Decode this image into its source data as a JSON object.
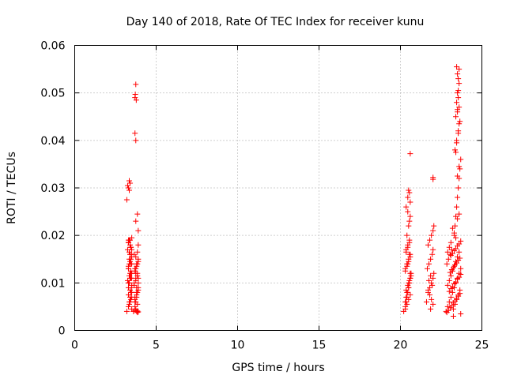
{
  "chart_data": {
    "type": "scatter",
    "title": "Day 140 of 2018, Rate Of TEC Index for receiver kunu",
    "xlabel": "GPS time / hours",
    "ylabel": "ROTI / TECUs",
    "xlim": [
      0,
      25
    ],
    "ylim": [
      0,
      0.06
    ],
    "xticks": [
      0,
      5,
      10,
      15,
      20,
      25
    ],
    "xtick_labels": [
      "0",
      "5",
      "10",
      "15",
      "20",
      "25"
    ],
    "yticks": [
      0,
      0.01,
      0.02,
      0.03,
      0.04,
      0.05,
      0.06
    ],
    "ytick_labels": [
      "0",
      "0.01",
      "0.02",
      "0.03",
      "0.04",
      "0.05",
      "0.06"
    ],
    "grid": true,
    "legend": "none",
    "marker": "plus",
    "color": "#ff0000",
    "series": [
      {
        "x": [
          3.2,
          3.3,
          3.35,
          3.4,
          3.45,
          3.5,
          3.3,
          3.4,
          3.5,
          3.3,
          3.45,
          3.35,
          3.5,
          3.25,
          3.4,
          3.3,
          3.5,
          3.35,
          3.45,
          3.3,
          3.4,
          3.5,
          3.25,
          3.35,
          3.45,
          3.3,
          3.4,
          3.5,
          3.35,
          3.45,
          3.3,
          3.4,
          3.5,
          3.3,
          3.45,
          3.35,
          3.4,
          3.5,
          3.3,
          3.45,
          3.2,
          3.35,
          3.3,
          3.4,
          3.25,
          3.35,
          3.5,
          3.3,
          3.4,
          3.45,
          3.5,
          3.3,
          3.35,
          3.4,
          3.45,
          3.5,
          3.3,
          3.4,
          3.5,
          3.35,
          3.6,
          3.7,
          3.75,
          3.8,
          3.85,
          3.9,
          3.65,
          3.75,
          3.85,
          3.7,
          3.8,
          3.9,
          3.65,
          3.75,
          3.85,
          3.7,
          3.8,
          3.9,
          3.65,
          3.75,
          3.85,
          3.7,
          3.8,
          3.9,
          3.75,
          3.85,
          3.7,
          3.8,
          3.9,
          3.75,
          3.85,
          3.7,
          3.8,
          3.9,
          3.75,
          3.85,
          3.7,
          3.8,
          3.9,
          3.85,
          3.7,
          3.72,
          3.75,
          3.78,
          3.7,
          3.75,
          3.75,
          3.85,
          3.9,
          3.9
        ],
        "y": [
          0.004,
          0.005,
          0.006,
          0.007,
          0.008,
          0.009,
          0.01,
          0.011,
          0.012,
          0.013,
          0.014,
          0.015,
          0.016,
          0.017,
          0.018,
          0.019,
          0.0045,
          0.0055,
          0.0065,
          0.0075,
          0.0085,
          0.0095,
          0.0105,
          0.0115,
          0.0125,
          0.0135,
          0.0145,
          0.0155,
          0.0165,
          0.0175,
          0.0185,
          0.006,
          0.008,
          0.01,
          0.012,
          0.014,
          0.016,
          0.007,
          0.009,
          0.011,
          0.0275,
          0.0295,
          0.03,
          0.031,
          0.0305,
          0.0315,
          0.0195,
          0.0185,
          0.019,
          0.0175,
          0.017,
          0.0185,
          0.019,
          0.016,
          0.015,
          0.014,
          0.013,
          0.012,
          0.011,
          0.01,
          0.004,
          0.005,
          0.006,
          0.007,
          0.008,
          0.009,
          0.01,
          0.011,
          0.012,
          0.013,
          0.014,
          0.015,
          0.016,
          0.0045,
          0.0055,
          0.0065,
          0.0075,
          0.0085,
          0.0095,
          0.0105,
          0.0115,
          0.0125,
          0.0135,
          0.0145,
          0.0155,
          0.0165,
          0.006,
          0.008,
          0.01,
          0.012,
          0.014,
          0.007,
          0.009,
          0.011,
          0.013,
          0.0038,
          0.0042,
          0.004,
          0.0039,
          0.0041,
          0.049,
          0.0497,
          0.0518,
          0.0485,
          0.0415,
          0.04,
          0.023,
          0.0245,
          0.021,
          0.018
        ]
      },
      {
        "x": [
          20.2,
          20.3,
          20.35,
          20.4,
          20.45,
          20.5,
          20.55,
          20.6,
          20.65,
          20.3,
          20.4,
          20.5,
          20.6,
          20.35,
          20.45,
          20.55,
          20.3,
          20.4,
          20.5,
          20.6,
          20.35,
          20.45,
          20.55,
          20.65,
          20.3,
          20.4,
          20.5,
          20.6,
          20.35,
          20.45,
          20.55,
          20.3,
          20.4,
          20.5,
          20.6,
          20.45,
          20.55,
          20.35,
          20.5,
          20.6,
          20.4,
          20.5,
          20.6,
          20.35,
          20.45,
          20.55,
          20.5,
          20.6,
          20.45,
          20.55,
          20.6
        ],
        "y": [
          0.004,
          0.005,
          0.006,
          0.007,
          0.008,
          0.009,
          0.01,
          0.011,
          0.012,
          0.013,
          0.014,
          0.015,
          0.016,
          0.017,
          0.018,
          0.019,
          0.0045,
          0.0055,
          0.0065,
          0.0075,
          0.0085,
          0.0095,
          0.0105,
          0.0115,
          0.0125,
          0.0135,
          0.0145,
          0.0155,
          0.0165,
          0.0175,
          0.0185,
          0.006,
          0.008,
          0.01,
          0.012,
          0.014,
          0.016,
          0.007,
          0.009,
          0.011,
          0.02,
          0.022,
          0.024,
          0.026,
          0.028,
          0.029,
          0.0295,
          0.027,
          0.025,
          0.023,
          0.0372
        ]
      },
      {
        "x": [
          21.6,
          21.7,
          21.8,
          21.9,
          22.0,
          22.05,
          21.65,
          21.75,
          21.85,
          21.95,
          22.0,
          21.7,
          21.8,
          21.9,
          22.0,
          21.75,
          21.85,
          21.95,
          21.7,
          21.8,
          21.9,
          22.0,
          21.85,
          22.05,
          22.0,
          22.0
        ],
        "y": [
          0.006,
          0.008,
          0.009,
          0.01,
          0.011,
          0.012,
          0.013,
          0.014,
          0.015,
          0.016,
          0.017,
          0.018,
          0.019,
          0.02,
          0.021,
          0.0105,
          0.0115,
          0.0095,
          0.0085,
          0.0075,
          0.0065,
          0.0055,
          0.0045,
          0.022,
          0.0318,
          0.0322
        ]
      },
      {
        "x": [
          22.8,
          22.9,
          23.0,
          23.1,
          23.2,
          23.3,
          23.4,
          23.5,
          23.6,
          23.7,
          22.85,
          22.95,
          23.05,
          23.15,
          23.25,
          23.35,
          23.45,
          23.55,
          23.65,
          22.9,
          23.0,
          23.1,
          23.2,
          23.3,
          23.4,
          23.5,
          23.6,
          23.7,
          22.85,
          22.95,
          23.05,
          23.15,
          23.25,
          23.35,
          23.45,
          23.55,
          23.65,
          23.0,
          23.1,
          23.2,
          23.3,
          23.4,
          23.5,
          23.6,
          23.7,
          23.05,
          23.15,
          23.25,
          23.35,
          23.45,
          23.55,
          23.65,
          23.1,
          23.2,
          23.3,
          23.4,
          23.5,
          23.6,
          23.7,
          23.25,
          23.3,
          23.35,
          23.4,
          23.45,
          23.5,
          23.55,
          23.6,
          23.65,
          23.7,
          23.35,
          23.45,
          23.55,
          23.65,
          23.4,
          23.5,
          23.6,
          23.45,
          23.55,
          23.5,
          23.6,
          23.55,
          23.5,
          23.6,
          23.45,
          23.55,
          23.5,
          23.6,
          23.55,
          23.45,
          23.4,
          23.6,
          23.5,
          23.2,
          23.3,
          23.4,
          23.1,
          22.9,
          23.0,
          23.5,
          23.6
        ],
        "y": [
          0.004,
          0.005,
          0.006,
          0.007,
          0.008,
          0.009,
          0.01,
          0.011,
          0.012,
          0.013,
          0.014,
          0.015,
          0.016,
          0.017,
          0.0045,
          0.0055,
          0.0065,
          0.0075,
          0.0085,
          0.0095,
          0.0105,
          0.0115,
          0.0125,
          0.0135,
          0.0145,
          0.0155,
          0.0165,
          0.0035,
          0.0038,
          0.0042,
          0.0048,
          0.0052,
          0.0058,
          0.0062,
          0.0068,
          0.0072,
          0.0078,
          0.0082,
          0.0088,
          0.0092,
          0.0098,
          0.0102,
          0.0108,
          0.0112,
          0.0118,
          0.0122,
          0.0128,
          0.0132,
          0.0138,
          0.0142,
          0.0148,
          0.0152,
          0.0158,
          0.0162,
          0.0168,
          0.0172,
          0.0178,
          0.0182,
          0.0188,
          0.003,
          0.02,
          0.022,
          0.024,
          0.026,
          0.028,
          0.03,
          0.032,
          0.034,
          0.036,
          0.038,
          0.04,
          0.042,
          0.044,
          0.045,
          0.046,
          0.047,
          0.048,
          0.049,
          0.05,
          0.052,
          0.053,
          0.054,
          0.055,
          0.0555,
          0.0505,
          0.0465,
          0.0435,
          0.0415,
          0.0395,
          0.0375,
          0.0345,
          0.0325,
          0.0215,
          0.0205,
          0.0195,
          0.0185,
          0.0165,
          0.0175,
          0.0235,
          0.0245
        ]
      }
    ]
  }
}
